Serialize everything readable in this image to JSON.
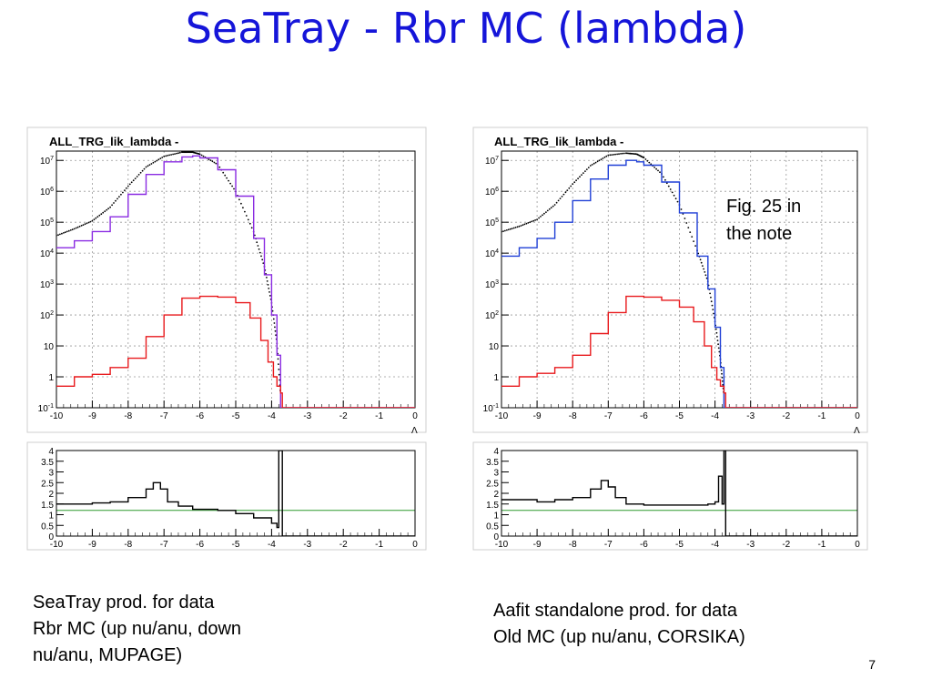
{
  "slide": {
    "title": "SeaTray - Rbr MC (lambda)",
    "page_number": "7",
    "note": "Fig. 25 in\nthe note",
    "caption_left": "SeaTray prod. for data\nRbr MC (up nu/anu, down\nnu/anu, MUPAGE)",
    "caption_right": "Aafit standalone prod. for data\nOld MC (up nu/anu, CORSIKA)"
  },
  "colors": {
    "title": "#1515d9",
    "data": "#000000",
    "mc_purple": "#8a2be2",
    "mc_blue": "#1f3fd6",
    "second": "#e8191c",
    "ratio_ref": "#2e9a2e",
    "grid": "#999999"
  },
  "chart_data": [
    {
      "type": "line",
      "panel": "left-main",
      "title": "ALL_TRG_lik_lambda -",
      "xlabel": "Λ",
      "xlim": [
        -10,
        0
      ],
      "ylog": true,
      "ylim": [
        0.1,
        20000000
      ],
      "xticks": [
        "-10",
        "-9",
        "-8",
        "-7",
        "-6",
        "-5",
        "-4",
        "-3",
        "-2",
        "-1",
        "0"
      ],
      "yticks": [
        "10^-1",
        "1",
        "10",
        "10^2",
        "10^3",
        "10^4",
        "10^5",
        "10^6",
        "10^7"
      ],
      "grid": true,
      "series": [
        {
          "style": "data-markers",
          "color": "#000000",
          "x": [
            -10,
            -9.5,
            -9,
            -8.5,
            -8,
            -7.5,
            -7,
            -6.5,
            -6.2,
            -6,
            -5.5,
            -5,
            -4.5,
            -4.2,
            -4,
            -3.85,
            -3.75
          ],
          "y": [
            30000,
            50000,
            90000,
            250000,
            1200000,
            5000000,
            11000000,
            15000000,
            15000000,
            13000000,
            6000000,
            800000,
            40000,
            3000,
            200,
            10,
            0.2
          ]
        },
        {
          "style": "step",
          "color": "#8a2be2",
          "x": [
            -10,
            -9.5,
            -9,
            -8.5,
            -8,
            -7.5,
            -7,
            -6.5,
            -6.2,
            -6,
            -5.5,
            -5,
            -4.5,
            -4.2,
            -4,
            -3.85,
            -3.75
          ],
          "y": [
            15000,
            25000,
            50000,
            150000,
            800000,
            3500000,
            9000000,
            13000000,
            14000000,
            12000000,
            5000000,
            700000,
            30000,
            2000,
            100,
            5,
            0.1
          ]
        },
        {
          "style": "step",
          "color": "#e8191c",
          "x": [
            -10,
            -9.5,
            -9,
            -8.5,
            -8,
            -7.5,
            -7,
            -6.5,
            -6,
            -5.5,
            -5,
            -4.6,
            -4.3,
            -4.1,
            -3.95,
            -3.85,
            -3.75,
            -3.7,
            -3.6,
            0
          ],
          "y": [
            0.5,
            1,
            1.2,
            2,
            4,
            20,
            100,
            350,
            400,
            380,
            250,
            80,
            15,
            3,
            1,
            0.5,
            0.3,
            0.1,
            0.1,
            0.1
          ]
        }
      ]
    },
    {
      "type": "line",
      "panel": "left-ratio",
      "xlim": [
        -10,
        0
      ],
      "ylim": [
        0,
        4
      ],
      "xticks": [
        "-10",
        "-9",
        "-8",
        "-7",
        "-6",
        "-5",
        "-4",
        "-3",
        "-2",
        "-1",
        "0"
      ],
      "yticks": [
        "0",
        "0.5",
        "1",
        "1.5",
        "2",
        "2.5",
        "3",
        "3.5",
        "4"
      ],
      "reference_line": 1.2,
      "series": [
        {
          "style": "step",
          "color": "#000000",
          "x": [
            -10,
            -9,
            -8.5,
            -8,
            -7.5,
            -7.3,
            -7.1,
            -6.9,
            -6.6,
            -6.2,
            -5.5,
            -5,
            -4.5,
            -4,
            -3.85,
            -3.8,
            -3.75,
            -3.7,
            0
          ],
          "y": [
            1.5,
            1.55,
            1.6,
            1.8,
            2.2,
            2.5,
            2.2,
            1.6,
            1.4,
            1.25,
            1.2,
            1.05,
            0.85,
            0.6,
            0.4,
            4,
            4,
            0,
            0
          ]
        }
      ]
    },
    {
      "type": "line",
      "panel": "right-main",
      "title": "ALL_TRG_lik_lambda -",
      "xlabel": "Λ",
      "xlim": [
        -10,
        0
      ],
      "ylog": true,
      "ylim": [
        0.1,
        20000000
      ],
      "xticks": [
        "-10",
        "-9",
        "-8",
        "-7",
        "-6",
        "-5",
        "-4",
        "-3",
        "-2",
        "-1",
        "0"
      ],
      "yticks": [
        "10^-1",
        "1",
        "10",
        "10^2",
        "10^3",
        "10^4",
        "10^5",
        "10^6",
        "10^7"
      ],
      "grid": true,
      "series": [
        {
          "style": "data-markers",
          "color": "#000000",
          "x": [
            -10,
            -9.5,
            -9,
            -8.5,
            -8,
            -7.5,
            -7,
            -6.5,
            -6.2,
            -6,
            -5.5,
            -5,
            -4.5,
            -4.2,
            -4,
            -3.85,
            -3.75
          ],
          "y": [
            40000,
            60000,
            100000,
            300000,
            1400000,
            5500000,
            12000000,
            14000000,
            13000000,
            10000000,
            3000000,
            300000,
            10000,
            1000,
            50,
            3,
            0.2
          ]
        },
        {
          "style": "step",
          "color": "#1f3fd6",
          "x": [
            -10,
            -9.5,
            -9,
            -8.5,
            -8,
            -7.5,
            -7,
            -6.5,
            -6.2,
            -6,
            -5.5,
            -5,
            -4.5,
            -4.2,
            -4,
            -3.85,
            -3.75
          ],
          "y": [
            8000,
            15000,
            30000,
            100000,
            500000,
            2500000,
            7000000,
            10000000,
            9000000,
            7000000,
            2000000,
            200000,
            8000,
            700,
            40,
            2,
            0.1
          ]
        },
        {
          "style": "step",
          "color": "#e8191c",
          "x": [
            -10,
            -9.5,
            -9,
            -8.5,
            -8,
            -7.5,
            -7,
            -6.5,
            -6,
            -5.5,
            -5,
            -4.6,
            -4.3,
            -4.1,
            -3.95,
            -3.85,
            -3.75,
            -3.7,
            -3.6,
            0
          ],
          "y": [
            0.5,
            1,
            1.3,
            2,
            5,
            25,
            120,
            400,
            380,
            300,
            180,
            60,
            10,
            2,
            0.8,
            0.5,
            0.3,
            0.1,
            0.1,
            0.1
          ]
        }
      ]
    },
    {
      "type": "line",
      "panel": "right-ratio",
      "xlim": [
        -10,
        0
      ],
      "ylim": [
        0,
        4
      ],
      "xticks": [
        "-10",
        "-9",
        "-8",
        "-7",
        "-6",
        "-5",
        "-4",
        "-3",
        "-2",
        "-1",
        "0"
      ],
      "yticks": [
        "0",
        "0.5",
        "1",
        "1.5",
        "2",
        "2.5",
        "3",
        "3.5",
        "4"
      ],
      "reference_line": 1.2,
      "series": [
        {
          "style": "step",
          "color": "#000000",
          "x": [
            -10,
            -9,
            -8.5,
            -8,
            -7.5,
            -7.2,
            -7,
            -6.8,
            -6.5,
            -6,
            -5.5,
            -5,
            -4.5,
            -4.2,
            -4,
            -3.9,
            -3.8,
            -3.75,
            -3.7,
            0
          ],
          "y": [
            1.7,
            1.6,
            1.7,
            1.8,
            2.2,
            2.6,
            2.3,
            1.8,
            1.5,
            1.45,
            1.45,
            1.45,
            1.45,
            1.5,
            1.6,
            2.8,
            1.5,
            4,
            0,
            0
          ]
        }
      ]
    }
  ]
}
